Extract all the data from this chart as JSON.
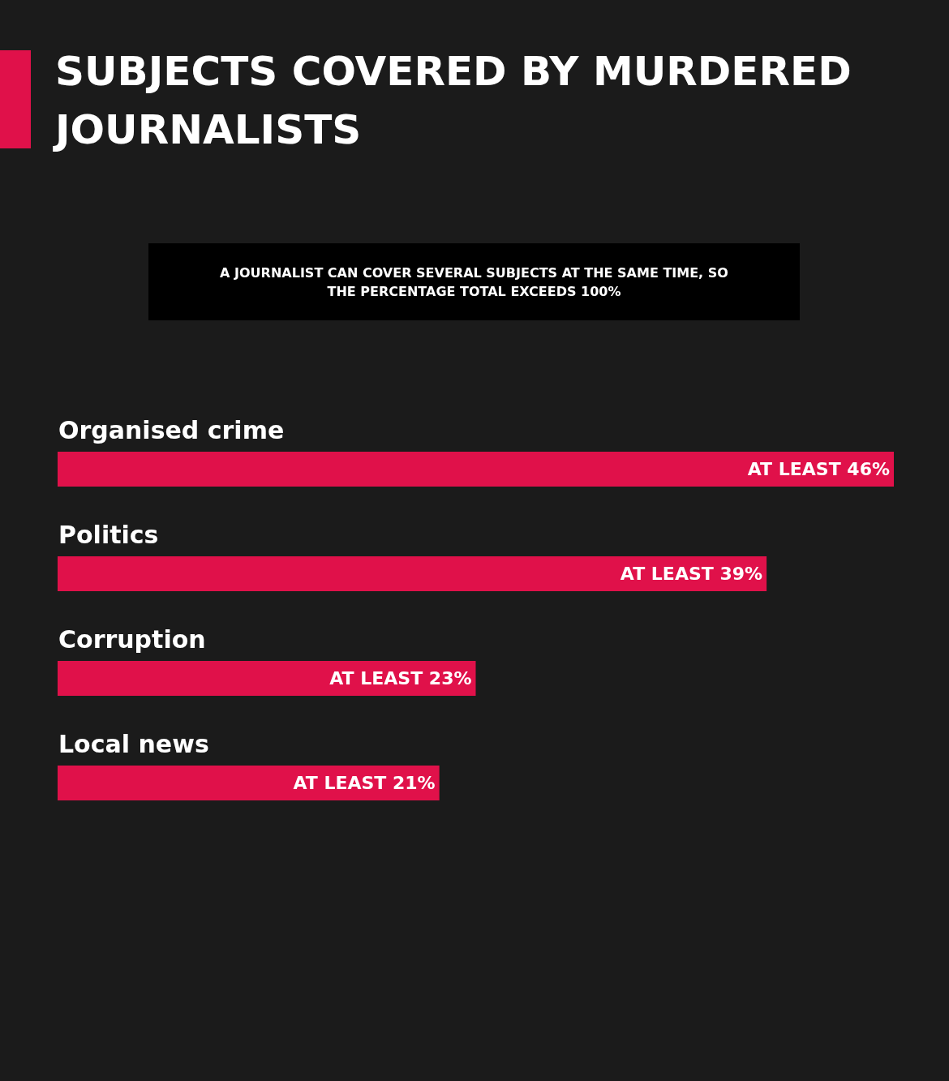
{
  "chart_data": {
    "type": "bar",
    "orientation": "horizontal",
    "title": "SUBJECTS COVERED BY MURDERED JOURNALISTS",
    "annotations": [
      "A JOURNALIST CAN COVER SEVERAL SUBJECTS AT THE SAME TIME, SO THE PERCENTAGE TOTAL EXCEEDS 100%"
    ],
    "categories": [
      "Organised crime",
      "Politics",
      "Corruption",
      "Local news"
    ],
    "values": [
      46,
      39,
      23,
      21
    ],
    "value_labels": [
      "AT LEAST 46%",
      "AT LEAST 39%",
      "AT LEAST 23%",
      "AT LEAST 21%"
    ],
    "color": "#e0114a",
    "xlim": [
      0,
      46
    ]
  }
}
